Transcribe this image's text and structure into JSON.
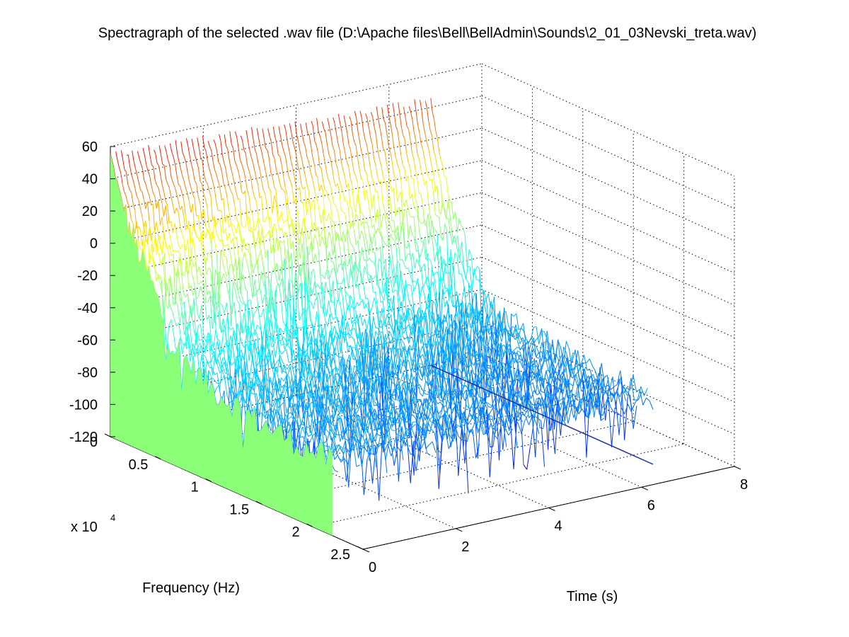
{
  "chart_data": {
    "type": "surface",
    "title": "Spectragraph of the selected .wav file (D:\\Apache files\\Bell\\BellAdmin\\Sounds\\2_01_03Nevski_treta.wav)",
    "xlabel": "Time (s)",
    "ylabel": "Frequency (Hz)",
    "zlabel": "",
    "y_multiplier_base": "x 10",
    "y_multiplier_exponent": "4",
    "xlim": [
      0,
      8
    ],
    "ylim": [
      0,
      2.5
    ],
    "zlim": [
      -120,
      60
    ],
    "x_ticks": [
      {
        "value": 0,
        "label": "0"
      },
      {
        "value": 2,
        "label": "2"
      },
      {
        "value": 4,
        "label": "4"
      },
      {
        "value": 6,
        "label": "6"
      },
      {
        "value": 8,
        "label": "8"
      }
    ],
    "y_ticks": [
      {
        "value": 0,
        "label": "0"
      },
      {
        "value": 0.5,
        "label": "0.5"
      },
      {
        "value": 1,
        "label": "1"
      },
      {
        "value": 1.5,
        "label": "1.5"
      },
      {
        "value": 2,
        "label": "2"
      },
      {
        "value": 2.5,
        "label": "2.5"
      }
    ],
    "z_ticks": [
      {
        "value": 60,
        "label": "60"
      },
      {
        "value": 40,
        "label": "40"
      },
      {
        "value": 20,
        "label": "20"
      },
      {
        "value": 0,
        "label": "0"
      },
      {
        "value": -20,
        "label": "-20"
      },
      {
        "value": -40,
        "label": "-40"
      },
      {
        "value": -60,
        "label": "-60"
      },
      {
        "value": -80,
        "label": "-80"
      },
      {
        "value": -100,
        "label": "-100"
      },
      {
        "value": -120,
        "label": "-120"
      }
    ],
    "data_extent": {
      "time_max_s": 6.9,
      "freq_max_x10k": 2.2
    },
    "grid": true,
    "colormap": "jet",
    "fill_color": "#8cff78",
    "surface": {
      "description": "Magnitude (dB) per time frame vs frequency; high at low frequencies (up to ~55 dB near 0 Hz), falling toward ~-70 dB above ~0.6e4 Hz; low-frequency energy decays slowly over time",
      "freq_profile_x10k": [
        0,
        0.1,
        0.2,
        0.4,
        0.6,
        1.0,
        1.5,
        2.2
      ],
      "level_db_at_t0": [
        55,
        32,
        12,
        -12,
        -45,
        -62,
        -70,
        -74
      ],
      "time_decay_db_per_s": [
        1.5,
        3,
        4,
        5,
        3,
        1.5,
        1,
        0.8
      ],
      "noise_db": 9
    }
  }
}
